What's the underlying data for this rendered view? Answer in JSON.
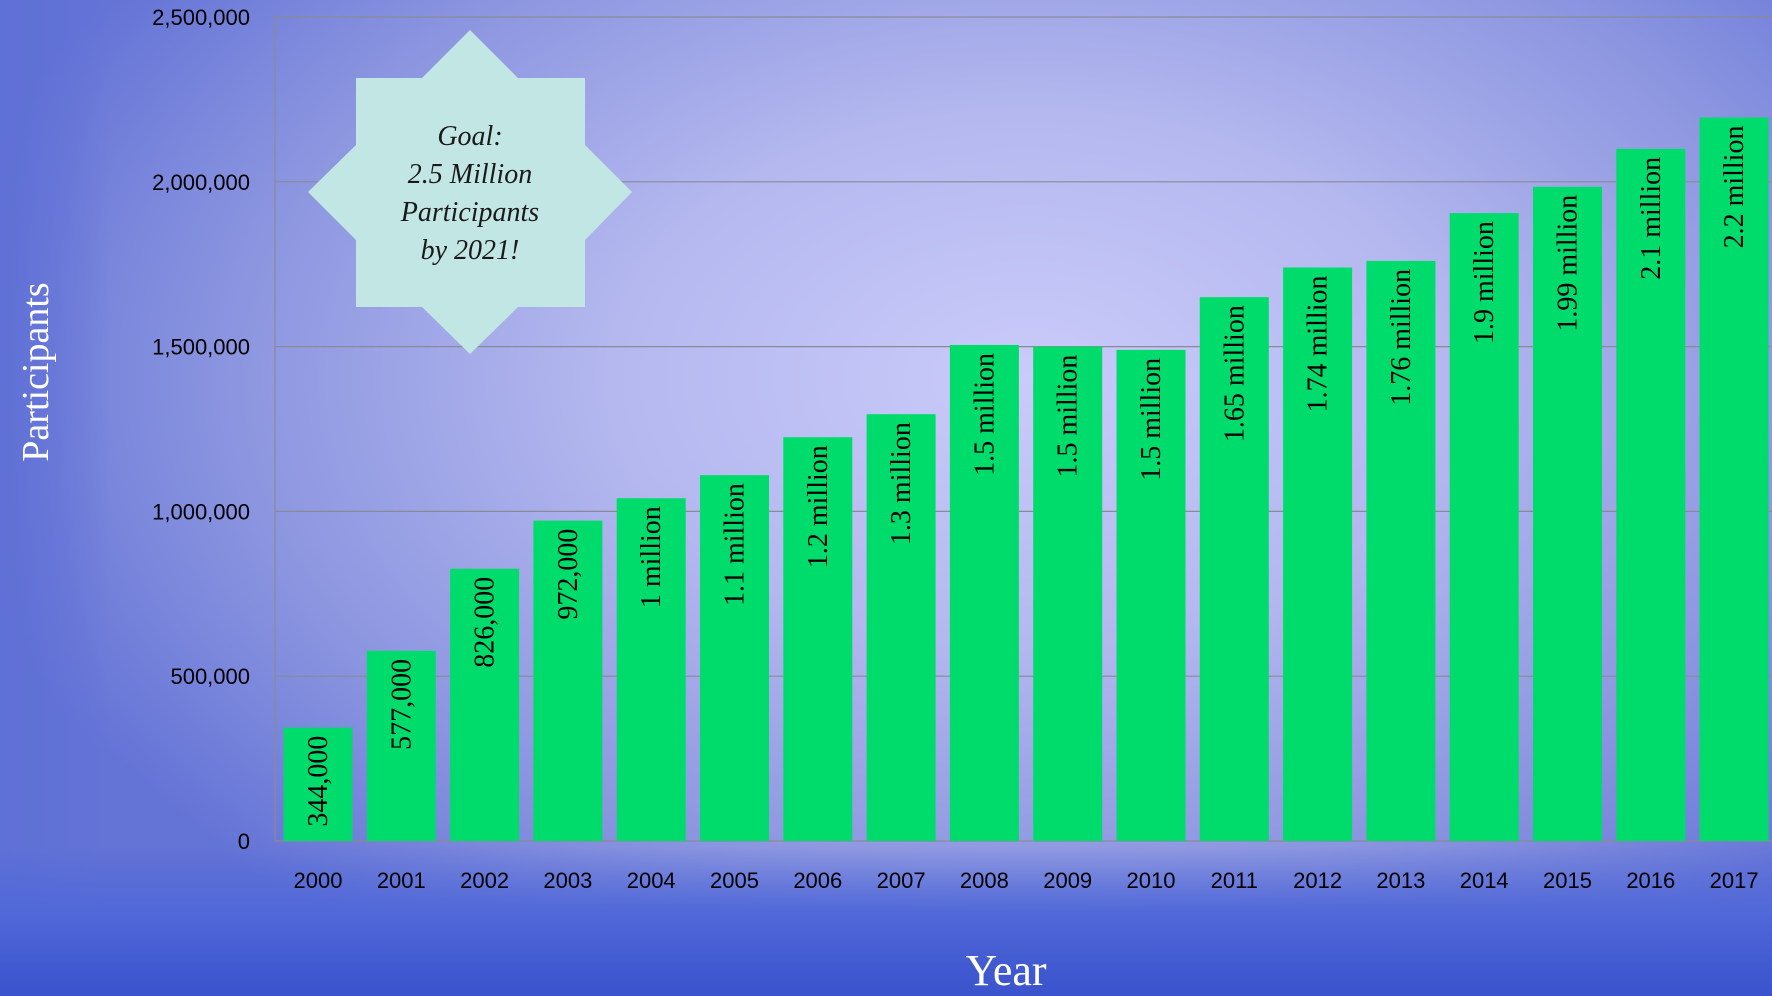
{
  "chart_data": {
    "type": "bar",
    "title": "",
    "xlabel": "Year",
    "ylabel": "Participants",
    "ylim": [
      0,
      2500000
    ],
    "yticks": [
      0,
      500000,
      1000000,
      1500000,
      2000000,
      2500000
    ],
    "ytick_labels": [
      "0",
      "500,000",
      "1,000,000",
      "1,500,000",
      "2,000,000",
      "2,500,000"
    ],
    "grid": true,
    "categories": [
      "2000",
      "2001",
      "2002",
      "2003",
      "2004",
      "2005",
      "2006",
      "2007",
      "2008",
      "2009",
      "2010",
      "2011",
      "2012",
      "2013",
      "2014",
      "2015",
      "2016",
      "2017"
    ],
    "values": [
      344000,
      577000,
      826000,
      972000,
      1040000,
      1110000,
      1225000,
      1295000,
      1505000,
      1500000,
      1490000,
      1650000,
      1740000,
      1760000,
      1905000,
      1985000,
      2100000,
      2195000
    ],
    "data_labels": [
      "344,000",
      "577,000",
      "826,000",
      "972,000",
      "1 million",
      "1.1 million",
      "1.2 million",
      "1.3 million",
      "1.5 million",
      "1.5 million",
      "1.5 million",
      "1.65 million",
      "1.74 million",
      "1.76 million",
      "1.9 million",
      "1.99 million",
      "2.1 million",
      "2.2 million"
    ],
    "bar_color": "#00dc6c",
    "annotation": {
      "lines": [
        "Goal:",
        "2.5 Million",
        "Participants",
        "by 2021!"
      ],
      "color": "#c2e6e4"
    }
  }
}
